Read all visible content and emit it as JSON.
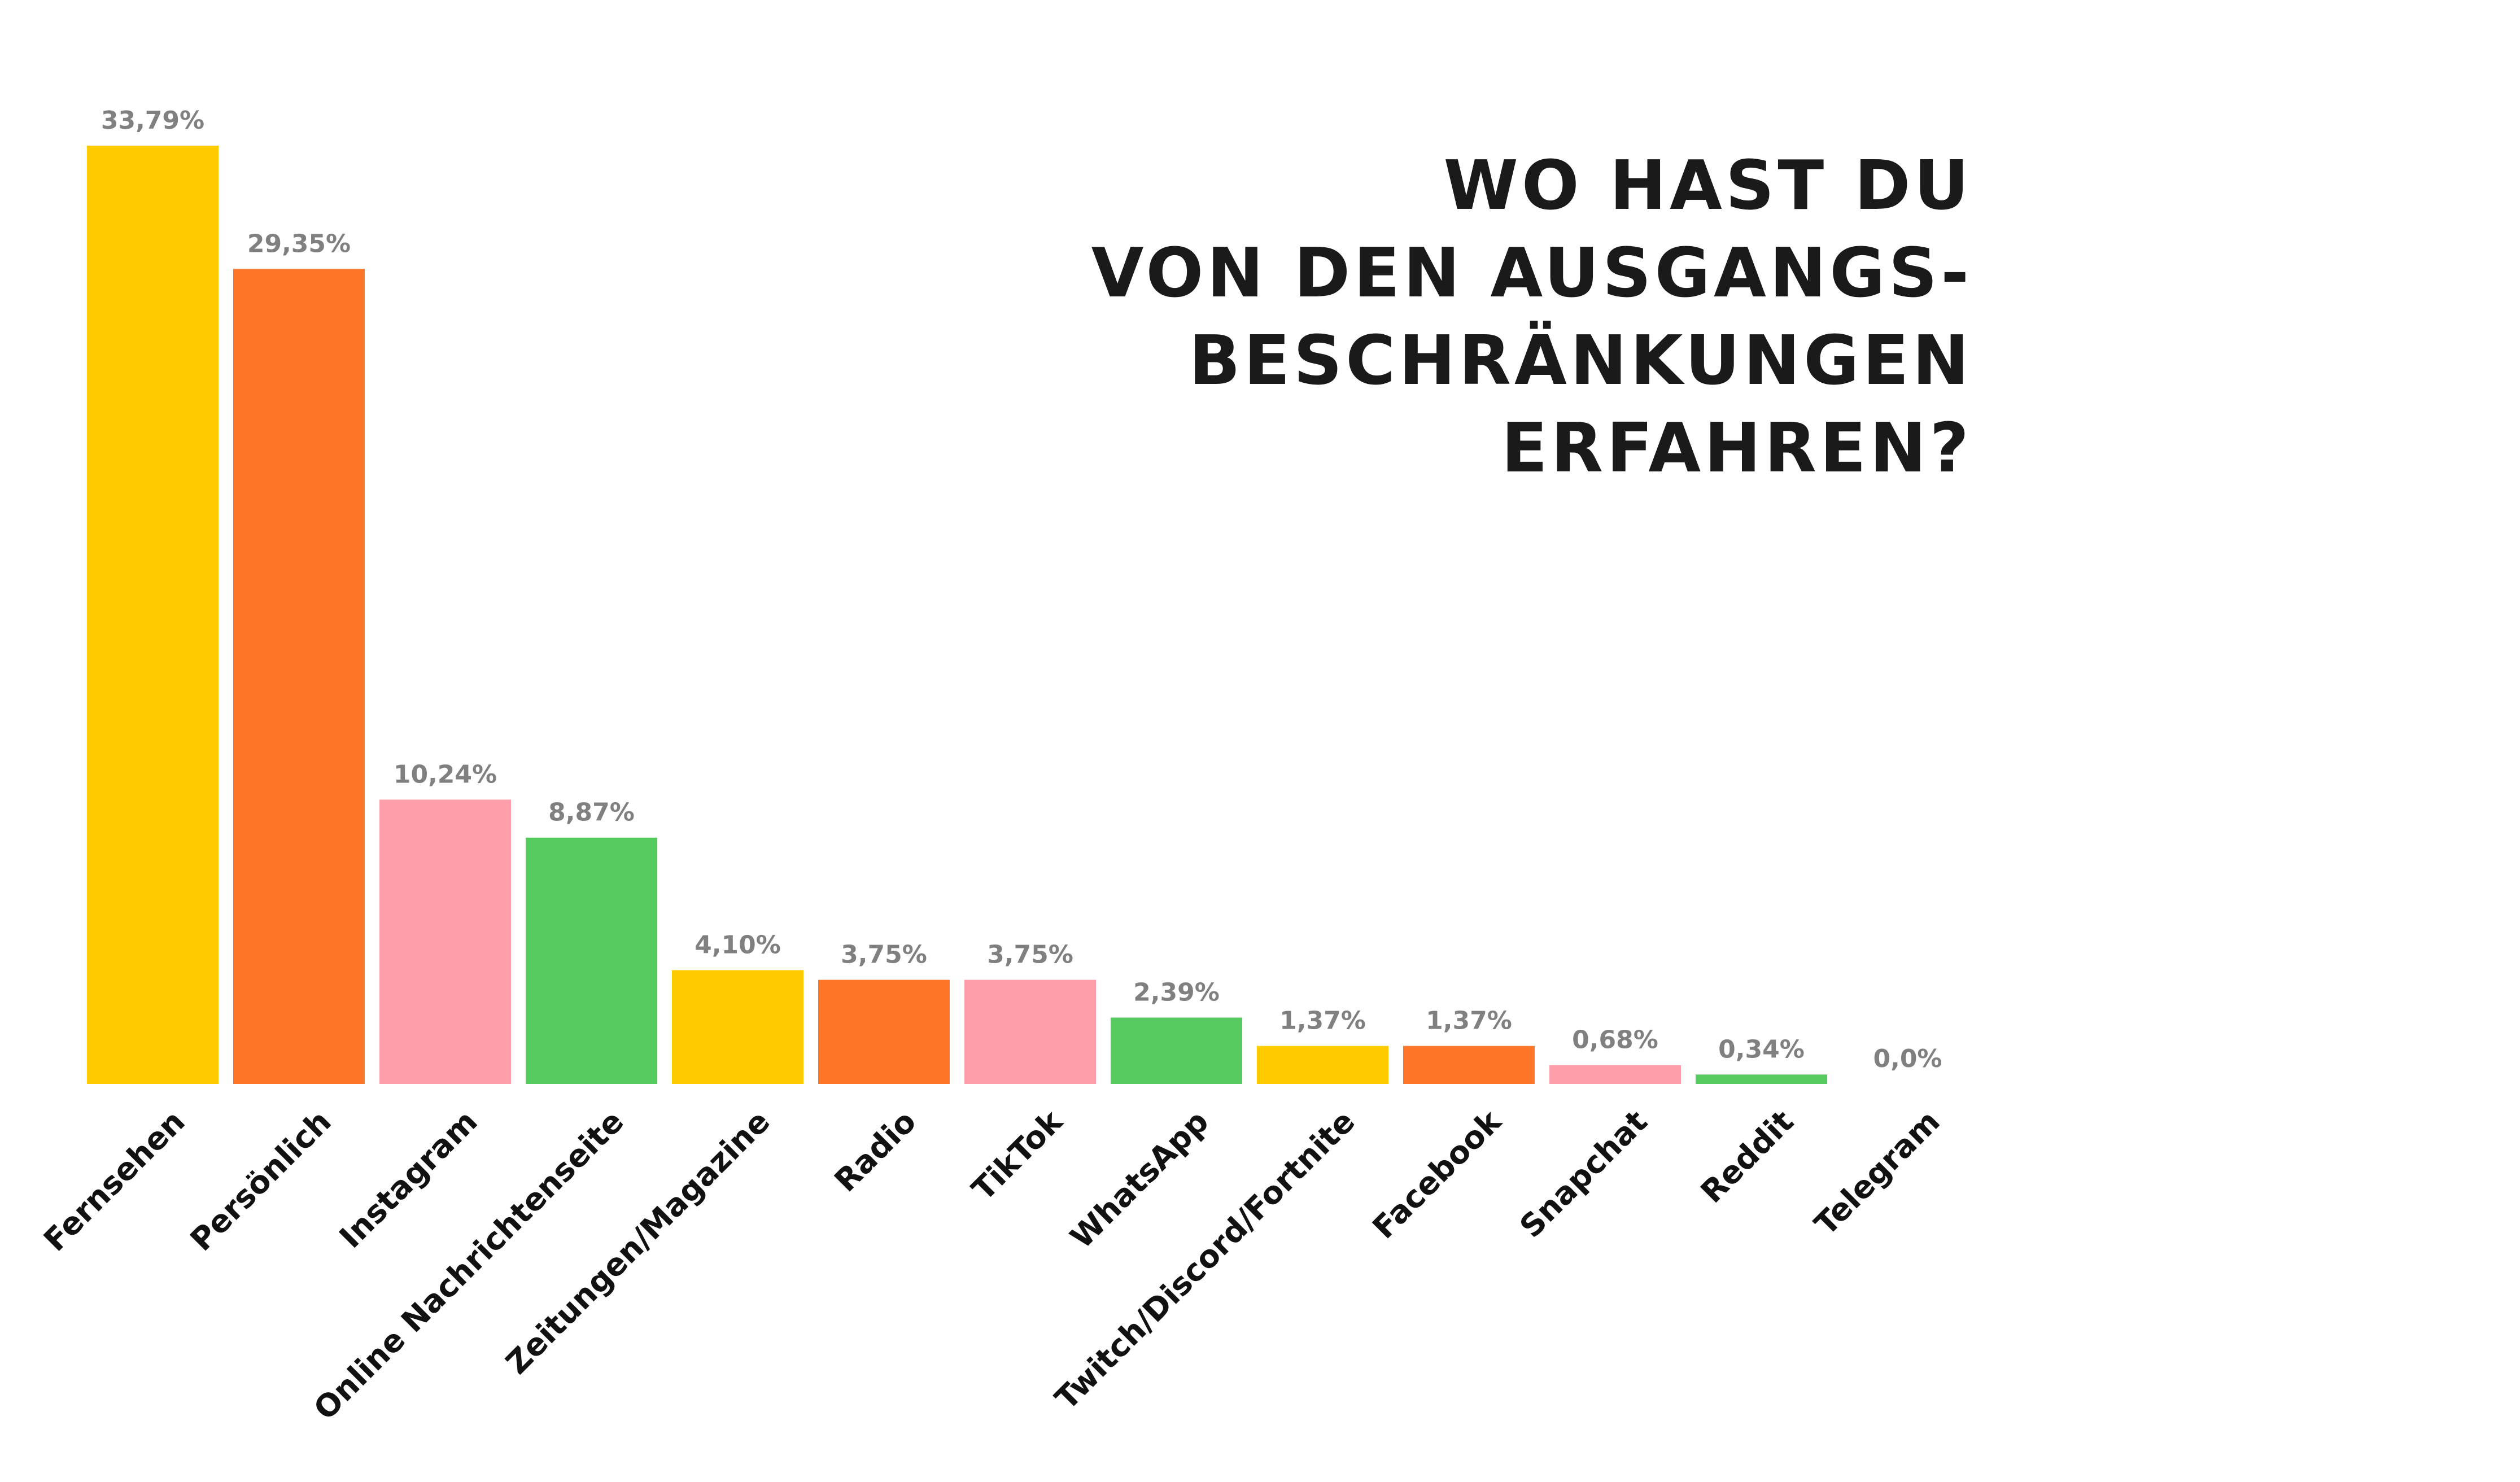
{
  "title_lines": [
    "WO HAST DU",
    "VON DEN AUSGANGS-",
    "BESCHRÄNKUNGEN",
    "ERFAHREN?"
  ],
  "colors": {
    "yellow": "#FFCC00",
    "orange": "#FF7629",
    "pink": "#FF9EAA",
    "green": "#55CA5F",
    "value_label": "#808080",
    "category_label": "#111111",
    "title": "#1a1a1a"
  },
  "chart_data": {
    "type": "bar",
    "title": "WO HAST DU VON DEN AUSGANGS-BESCHRÄNKUNGEN ERFAHREN?",
    "xlabel": "",
    "ylabel": "",
    "ylim": [
      0,
      33.79
    ],
    "grid": false,
    "legend": "none",
    "categories": [
      "Fernsehen",
      "Persönlich",
      "Instagram",
      "Online Nachrichtenseite",
      "Zeitungen/Magazine",
      "Radio",
      "TikTok",
      "WhatsApp",
      "Twitch/Discord/Fortnite",
      "Facebook",
      "Snapchat",
      "Reddit",
      "Telegram"
    ],
    "values": [
      33.79,
      29.35,
      10.24,
      8.87,
      4.1,
      3.75,
      3.75,
      2.39,
      1.37,
      1.37,
      0.68,
      0.34,
      0.0
    ],
    "value_labels": [
      "33,79%",
      "29,35%",
      "10,24%",
      "8,87%",
      "4,10%",
      "3,75%",
      "3,75%",
      "2,39%",
      "1,37%",
      "1,37%",
      "0,68%",
      "0,34%",
      "0,0%"
    ],
    "bar_colors": [
      "#FFCC00",
      "#FF7629",
      "#FF9EAA",
      "#55CA5F",
      "#FFCC00",
      "#FF7629",
      "#FF9EAA",
      "#55CA5F",
      "#FFCC00",
      "#FF7629",
      "#FF9EAA",
      "#55CA5F",
      "#FFCC00"
    ]
  }
}
